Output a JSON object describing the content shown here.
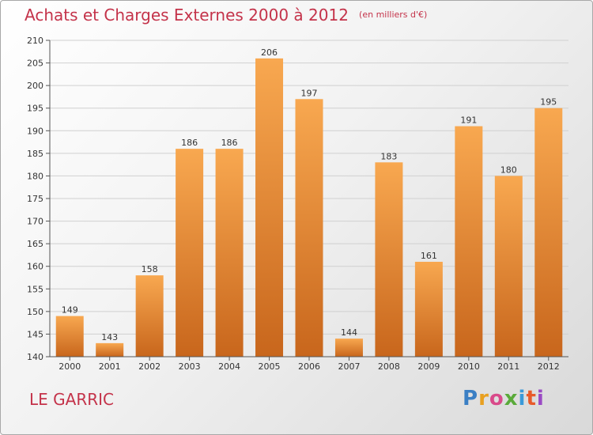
{
  "header": {
    "title": "Achats et Charges Externes 2000 à 2012",
    "unit": "(en milliers d'€)"
  },
  "footer": {
    "city": "LE GARRIC",
    "logo_letters": [
      "P",
      "r",
      "o",
      "x",
      "i",
      "t",
      "i"
    ],
    "logo_colors": [
      "#3a7fc4",
      "#e8a020",
      "#d94a8a",
      "#5aaa3a",
      "#3a9ad9",
      "#e85a2a",
      "#9a4ac4"
    ]
  },
  "colors": {
    "bar_light": "#f8a850",
    "bar_dark": "#c8661c",
    "text": "#333333",
    "title": "#c4334a"
  },
  "chart_data": {
    "type": "bar",
    "title": "Achats et Charges Externes 2000 à 2012",
    "categories": [
      "2000",
      "2001",
      "2002",
      "2003",
      "2004",
      "2005",
      "2006",
      "2007",
      "2008",
      "2009",
      "2010",
      "2011",
      "2012"
    ],
    "values": [
      149,
      143,
      158,
      186,
      186,
      206,
      197,
      144,
      183,
      161,
      191,
      180,
      195
    ],
    "ylim": [
      140,
      210
    ],
    "yticks": [
      140,
      145,
      150,
      155,
      160,
      165,
      170,
      175,
      180,
      185,
      190,
      195,
      200,
      205,
      210
    ],
    "grid": true,
    "data_labels": true
  }
}
